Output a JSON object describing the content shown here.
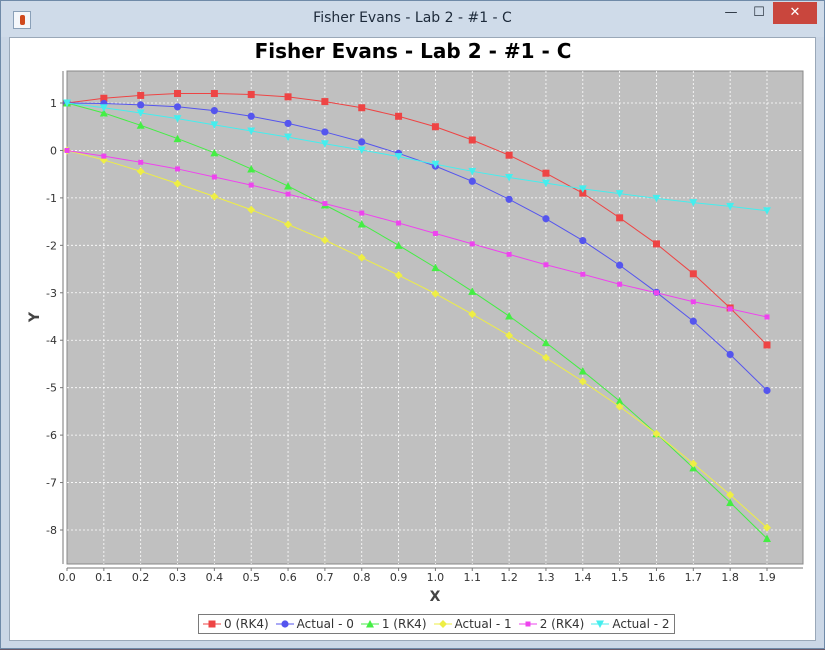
{
  "window": {
    "title": "Fisher Evans - Lab 2 - #1 - C",
    "minimize": "—",
    "maximize": "☐",
    "close": "✕"
  },
  "chart_data": {
    "type": "line",
    "title": "Fisher Evans - Lab 2 - #1 - C",
    "xlabel": "X",
    "ylabel": "Y",
    "xlim": [
      0.0,
      1.9
    ],
    "ylim": [
      -8.5,
      1.7
    ],
    "grid": true,
    "legend_position": "bottom",
    "x_ticks": [
      "0.0",
      "0.1",
      "0.2",
      "0.3",
      "0.4",
      "0.5",
      "0.6",
      "0.7",
      "0.8",
      "0.9",
      "1.0",
      "1.1",
      "1.2",
      "1.3",
      "1.4",
      "1.5",
      "1.6",
      "1.7",
      "1.8",
      "1.9"
    ],
    "y_ticks": [
      "1",
      "0",
      "-1",
      "-2",
      "-3",
      "-4",
      "-5",
      "-6",
      "-7",
      "-8"
    ],
    "x": [
      0.0,
      0.1,
      0.2,
      0.3,
      0.4,
      0.5,
      0.6,
      0.7,
      0.8,
      0.9,
      1.0,
      1.1,
      1.2,
      1.3,
      1.4,
      1.5,
      1.6,
      1.7,
      1.8,
      1.9
    ],
    "series": [
      {
        "name": "0 (RK4)",
        "color": "#ee4444",
        "marker": "square",
        "values": [
          1.0,
          1.1,
          1.16,
          1.2,
          1.2,
          1.18,
          1.13,
          1.03,
          0.9,
          0.72,
          0.5,
          0.22,
          -0.1,
          -0.48,
          -0.9,
          -1.42,
          -1.97,
          -2.6,
          -3.32,
          -4.1
        ]
      },
      {
        "name": "Actual - 0",
        "color": "#5555ee",
        "marker": "circle",
        "values": [
          1.0,
          0.99,
          0.96,
          0.92,
          0.84,
          0.72,
          0.57,
          0.39,
          0.18,
          -0.06,
          -0.33,
          -0.65,
          -1.03,
          -1.44,
          -1.9,
          -2.42,
          -2.99,
          -3.6,
          -4.3,
          -5.06
        ]
      },
      {
        "name": "1 (RK4)",
        "color": "#44ee44",
        "marker": "triangle",
        "values": [
          1.0,
          0.79,
          0.53,
          0.25,
          -0.05,
          -0.39,
          -0.75,
          -1.15,
          -1.55,
          -2.0,
          -2.47,
          -2.97,
          -3.49,
          -4.05,
          -4.65,
          -5.28,
          -5.97,
          -6.69,
          -7.42,
          -8.18
        ]
      },
      {
        "name": "Actual - 1",
        "color": "#eeee44",
        "marker": "diamond",
        "values": [
          0.0,
          -0.2,
          -0.44,
          -0.7,
          -0.97,
          -1.25,
          -1.56,
          -1.89,
          -2.26,
          -2.63,
          -3.02,
          -3.45,
          -3.9,
          -4.37,
          -4.87,
          -5.4,
          -5.97,
          -6.6,
          -7.26,
          -7.95
        ]
      },
      {
        "name": "2 (RK4)",
        "color": "#ee44ee",
        "marker": "small-square",
        "values": [
          0.0,
          -0.12,
          -0.25,
          -0.39,
          -0.56,
          -0.73,
          -0.92,
          -1.12,
          -1.32,
          -1.53,
          -1.75,
          -1.97,
          -2.19,
          -2.41,
          -2.61,
          -2.82,
          -3.0,
          -3.19,
          -3.34,
          -3.51
        ]
      },
      {
        "name": "Actual - 2",
        "color": "#44eeee",
        "marker": "down-triangle",
        "values": [
          1.0,
          0.9,
          0.79,
          0.67,
          0.54,
          0.41,
          0.28,
          0.14,
          0.01,
          -0.13,
          -0.29,
          -0.44,
          -0.57,
          -0.69,
          -0.81,
          -0.91,
          -1.01,
          -1.1,
          -1.18,
          -1.27
        ]
      }
    ]
  }
}
